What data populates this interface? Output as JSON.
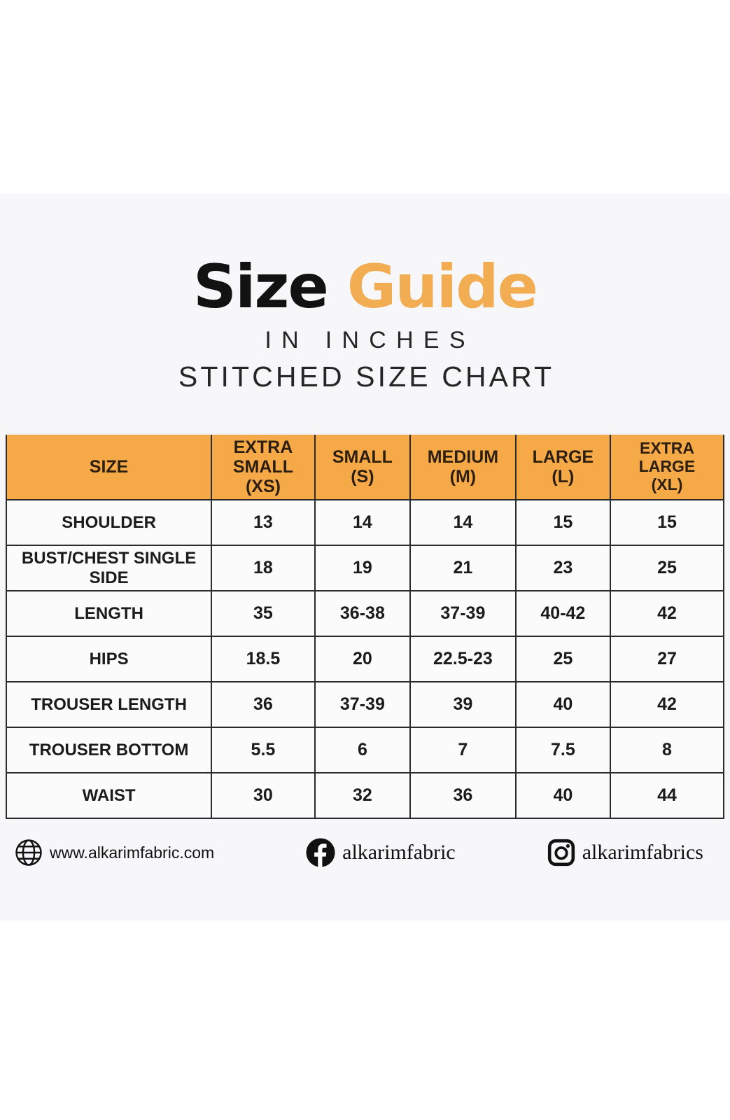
{
  "title": {
    "word_black": "Size",
    "word_orange": "Guide"
  },
  "subtitle_1": "IN INCHES",
  "subtitle_2": "STITCHED SIZE CHART",
  "colors": {
    "accent_orange_header": "#f5a947",
    "accent_orange_title": "#f2ac52",
    "page_background": "#f7f7f9",
    "table_border": "#2b2b2b",
    "text_dark": "#1f1f1f"
  },
  "chart_data": {
    "type": "table",
    "title": "Size Guide",
    "subtitle": [
      "IN INCHES",
      "STITCHED SIZE CHART"
    ],
    "columns": [
      "SIZE",
      "EXTRA SMALL (XS)",
      "SMALL (S)",
      "MEDIUM (M)",
      "LARGE (L)",
      "EXTRA LARGE (XL)"
    ],
    "header_lines": [
      [
        "SIZE"
      ],
      [
        "EXTRA",
        "SMALL (XS)"
      ],
      [
        "SMALL",
        "(S)"
      ],
      [
        "MEDIUM",
        "(M)"
      ],
      [
        "LARGE",
        "(L)"
      ],
      [
        "EXTRA LARGE",
        "(XL)"
      ]
    ],
    "rows": [
      {
        "label": "SHOULDER",
        "values": [
          "13",
          "14",
          "14",
          "15",
          "15"
        ]
      },
      {
        "label": "BUST/CHEST SINGLE SIDE",
        "values": [
          "18",
          "19",
          "21",
          "23",
          "25"
        ]
      },
      {
        "label": "LENGTH",
        "values": [
          "35",
          "36-38",
          "37-39",
          "40-42",
          "42"
        ]
      },
      {
        "label": "HIPS",
        "values": [
          "18.5",
          "20",
          "22.5-23",
          "25",
          "27"
        ]
      },
      {
        "label": "TROUSER LENGTH",
        "values": [
          "36",
          "37-39",
          "39",
          "40",
          "42"
        ]
      },
      {
        "label": "TROUSER BOTTOM",
        "values": [
          "5.5",
          "6",
          "7",
          "7.5",
          "8"
        ]
      },
      {
        "label": "WAIST",
        "values": [
          "30",
          "32",
          "36",
          "40",
          "44"
        ]
      }
    ]
  },
  "footer": {
    "website": "www.alkarimfabric.com",
    "facebook_handle": "alkarimfabric",
    "instagram_handle": "alkarimfabrics"
  }
}
